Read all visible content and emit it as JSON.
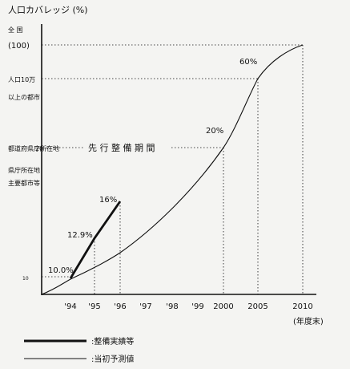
{
  "chart_data": {
    "type": "line",
    "title": "",
    "ylabel": "人口カバレッジ (%)",
    "y_side_labels": {
      "top": "全 国",
      "top_value": "(100)",
      "pop10man": "人口10万",
      "over": "以上の都市",
      "prefectural": "都道府県庁所在地",
      "pre_dev_label": "先 行 整 備 期 間",
      "pre_dev_tick": "20",
      "pref_capitals": "県庁所在地",
      "major_cities": "主要都市等"
    },
    "y_tick_small": "10",
    "xlabel": "(年度末)",
    "x_ticks": [
      "'94",
      "'95",
      "'96",
      "'97",
      "'98",
      "'99",
      "2000",
      "2005",
      "2010"
    ],
    "ylim": [
      0,
      100
    ],
    "series": [
      {
        "name": "整備実績等",
        "style": "thick",
        "points": [
          {
            "x": "'94",
            "y": 10.0,
            "label": "10.0%"
          },
          {
            "x": "'95",
            "y": 12.9,
            "label": "12.9%"
          },
          {
            "x": "'96",
            "y": 16,
            "label": "16%"
          }
        ]
      },
      {
        "name": "当初予測値",
        "style": "thin",
        "points": [
          {
            "x": "'94",
            "y": 10
          },
          {
            "x": "'96",
            "y": 12
          },
          {
            "x": "2000",
            "y": 20,
            "label": "20%"
          },
          {
            "x": "2005",
            "y": 60,
            "label": "60%"
          },
          {
            "x": "2010",
            "y": 100
          }
        ]
      }
    ],
    "legend": [
      {
        "label": ":整備実績等",
        "style": "thick"
      },
      {
        "label": ":当初予測値",
        "style": "thin"
      }
    ],
    "colors": {
      "ink": "#111111",
      "background": "#f4f4f2"
    }
  }
}
